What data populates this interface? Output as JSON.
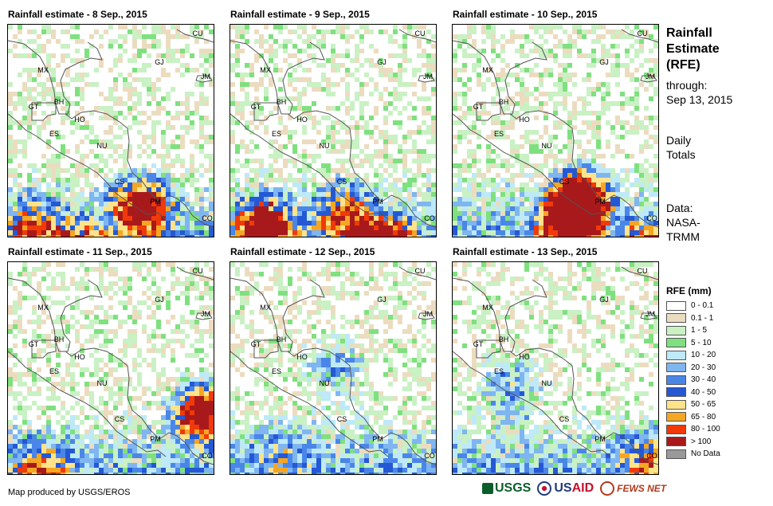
{
  "panels": [
    {
      "title": "Rainfall estimate - 8 Sep., 2015",
      "seed": 8,
      "hot": [
        [
          165,
          225,
          1.0
        ],
        [
          90,
          285,
          0.8
        ],
        [
          30,
          250,
          0.6
        ]
      ]
    },
    {
      "title": "Rainfall estimate - 9 Sep., 2015",
      "seed": 9,
      "hot": [
        [
          190,
          280,
          1.2
        ],
        [
          40,
          250,
          1.0
        ],
        [
          140,
          235,
          0.7
        ]
      ]
    },
    {
      "title": "Rainfall estimate - 10 Sep., 2015",
      "seed": 10,
      "hot": [
        [
          160,
          215,
          1.3
        ],
        [
          140,
          245,
          1.0
        ],
        [
          235,
          285,
          0.8
        ]
      ]
    },
    {
      "title": "Rainfall estimate - 11 Sep., 2015",
      "seed": 11,
      "hot": [
        [
          240,
          185,
          1.2
        ],
        [
          40,
          255,
          0.5
        ]
      ]
    },
    {
      "title": "Rainfall estimate - 12 Sep., 2015",
      "seed": 12,
      "hot": [
        [
          130,
          130,
          0.4
        ],
        [
          60,
          240,
          0.3
        ]
      ]
    },
    {
      "title": "Rainfall estimate - 13 Sep., 2015",
      "seed": 13,
      "hot": [
        [
          70,
          155,
          0.5
        ],
        [
          240,
          245,
          0.5
        ]
      ]
    }
  ],
  "country_labels": [
    {
      "code": "CU"
    },
    {
      "code": "MX"
    },
    {
      "code": "GJ"
    },
    {
      "code": "JM"
    },
    {
      "code": "BH"
    },
    {
      "code": "GT"
    },
    {
      "code": "HO"
    },
    {
      "code": "ES"
    },
    {
      "code": "NU"
    },
    {
      "code": "CS"
    },
    {
      "code": "PM"
    },
    {
      "code": "CO"
    }
  ],
  "sidebar": {
    "title_lines": [
      "Rainfall",
      "Estimate",
      "(RFE)"
    ],
    "through_label": "through:",
    "through_date": "Sep 13, 2015",
    "totals_line1": "Daily",
    "totals_line2": "Totals",
    "data_label": "Data:",
    "data_source_line1": "NASA-",
    "data_source_line2": "TRMM"
  },
  "legend": {
    "title": "RFE (mm)",
    "items": [
      {
        "label": "0 - 0.1",
        "color": "#ffffff"
      },
      {
        "label": "0.1 - 1",
        "color": "#ecdcbf"
      },
      {
        "label": "1 - 5",
        "color": "#c9f1c4"
      },
      {
        "label": "5 - 10",
        "color": "#7fe07f"
      },
      {
        "label": "10 - 20",
        "color": "#bde9f8"
      },
      {
        "label": "20 - 30",
        "color": "#7fb5f0"
      },
      {
        "label": "30 - 40",
        "color": "#4a86e8"
      },
      {
        "label": "40 - 50",
        "color": "#2458d4"
      },
      {
        "label": "50 - 65",
        "color": "#ffe38a"
      },
      {
        "label": "65 - 80",
        "color": "#f5a623"
      },
      {
        "label": "80 - 100",
        "color": "#f03a0a"
      },
      {
        "label": "> 100",
        "color": "#a8191c"
      },
      {
        "label": "No Data",
        "color": "#999999"
      }
    ]
  },
  "footer": {
    "credit": "Map produced by USGS/EROS",
    "logo_usgs": "USGS",
    "logo_usaid_a": "US",
    "logo_usaid_b": "AID",
    "logo_fews": "FEWS NET"
  }
}
